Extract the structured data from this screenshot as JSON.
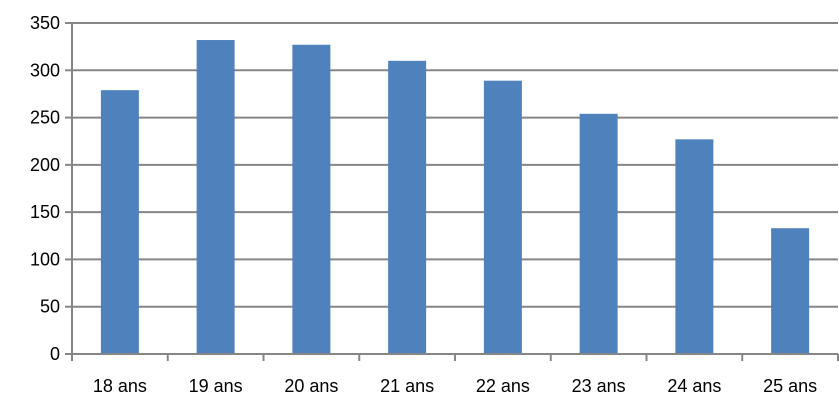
{
  "chart_data": {
    "type": "bar",
    "categories": [
      "18 ans",
      "19 ans",
      "20 ans",
      "21 ans",
      "22 ans",
      "23 ans",
      "24 ans",
      "25 ans"
    ],
    "values": [
      279,
      332,
      327,
      310,
      289,
      254,
      227,
      133
    ],
    "title": "",
    "xlabel": "",
    "ylabel": "",
    "ylim": [
      0,
      350
    ],
    "yticks": [
      0,
      50,
      100,
      150,
      200,
      250,
      300,
      350
    ],
    "grid": true,
    "legend": "none",
    "colors": {
      "bar": "#4f81bd",
      "grid": "#868686",
      "axis": "#868686"
    }
  }
}
